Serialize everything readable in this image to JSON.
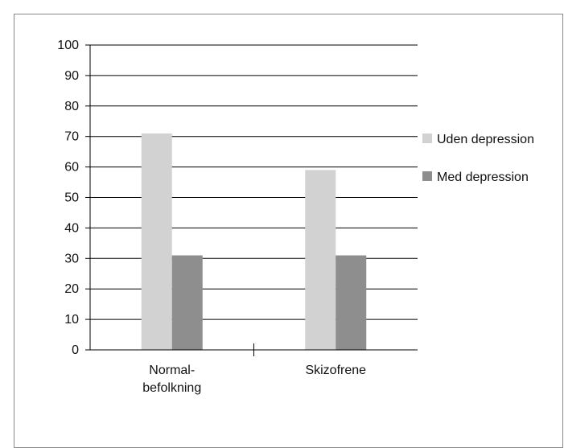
{
  "chart_data": {
    "type": "bar",
    "categories": [
      "Normal-\nbefolkning",
      "Skizofrene"
    ],
    "series": [
      {
        "name": "Uden depression",
        "values": [
          71,
          59
        ]
      },
      {
        "name": "Med depression",
        "values": [
          31,
          31
        ]
      }
    ],
    "title": "",
    "xlabel": "",
    "ylabel": "",
    "ylim": [
      0,
      100
    ],
    "yticks": [
      0,
      10,
      20,
      30,
      40,
      50,
      60,
      70,
      80,
      90,
      100
    ],
    "grid": true,
    "legend_position": "right",
    "colors": {
      "series": [
        "#d2d2d2",
        "#8e8e8e"
      ],
      "grid": "#000000",
      "axis": "#000000",
      "border": "#8a8a8a"
    }
  }
}
